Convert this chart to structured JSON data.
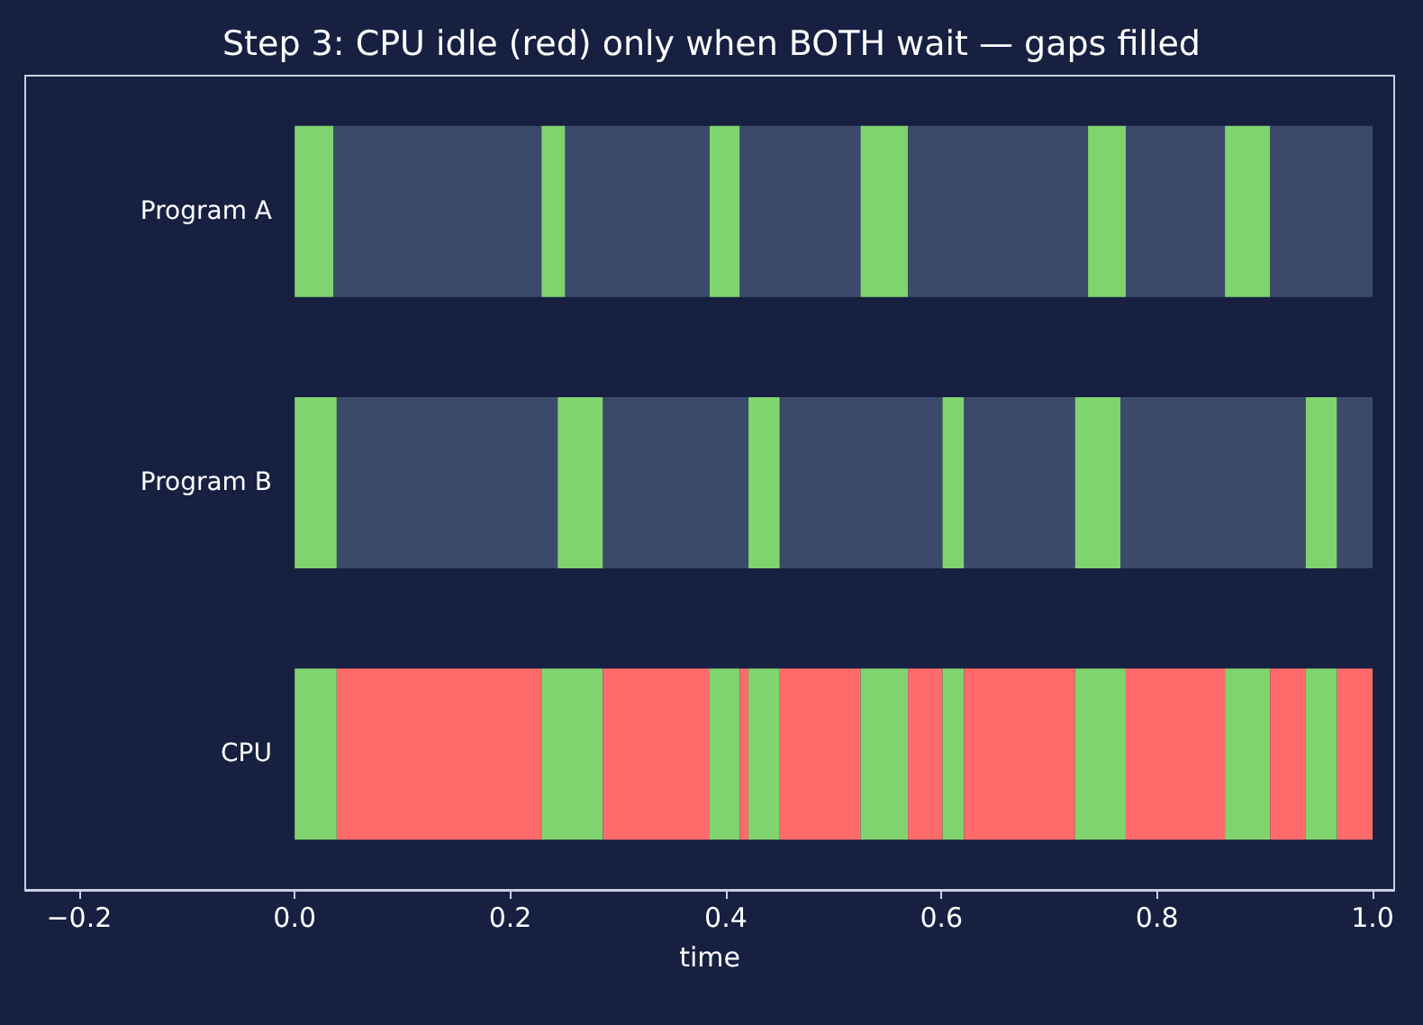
{
  "chart_data": {
    "type": "bar",
    "orientation": "horizontal",
    "stacked": true,
    "title": "Step 3: CPU idle (red) only when BOTH wait — gaps filled",
    "xlabel": "time",
    "categories": [
      "Program A",
      "Program B",
      "CPU"
    ],
    "xlim": [
      -0.25,
      1.02
    ],
    "xticks": [
      {
        "value": -0.2,
        "label": "−0.2"
      },
      {
        "value": 0,
        "label": "0.0"
      },
      {
        "value": 0.2,
        "label": "0.2"
      },
      {
        "value": 0.4,
        "label": "0.4"
      },
      {
        "value": 0.6,
        "label": "0.6"
      },
      {
        "value": 0.8,
        "label": "0.8"
      },
      {
        "value": 1.0,
        "label": "1.0"
      }
    ],
    "grid": false,
    "series": [
      {
        "values": [
          0.036,
          0.039,
          0.039
        ],
        "colors": [
          "#80d46f",
          "#80d46f",
          "#80d46f"
        ]
      },
      {
        "values": [
          0.193,
          0.205,
          0.19
        ],
        "colors": [
          "#3b4a6b",
          "#3b4a6b",
          "#ff6b6b"
        ]
      },
      {
        "values": [
          0.022,
          0.042,
          0.057
        ],
        "colors": [
          "#80d46f",
          "#80d46f",
          "#80d46f"
        ]
      },
      {
        "values": [
          0.134,
          0.135,
          0.099
        ],
        "colors": [
          "#3b4a6b",
          "#3b4a6b",
          "#ff6b6b"
        ]
      },
      {
        "values": [
          0.028,
          0.029,
          0.028
        ],
        "colors": [
          "#80d46f",
          "#80d46f",
          "#80d46f"
        ]
      },
      {
        "values": [
          0.112,
          0.151,
          0.008
        ],
        "colors": [
          "#3b4a6b",
          "#3b4a6b",
          "#ff6b6b"
        ]
      },
      {
        "values": [
          0.044,
          0.02,
          0.029
        ],
        "colors": [
          "#80d46f",
          "#80d46f",
          "#80d46f"
        ]
      },
      {
        "values": [
          0.167,
          0.103,
          0.075
        ],
        "colors": [
          "#3b4a6b",
          "#3b4a6b",
          "#ff6b6b"
        ]
      },
      {
        "values": [
          0.035,
          0.042,
          0.044
        ],
        "colors": [
          "#80d46f",
          "#80d46f",
          "#80d46f"
        ]
      },
      {
        "values": [
          0.092,
          0.172,
          0.032
        ],
        "colors": [
          "#3b4a6b",
          "#3b4a6b",
          "#ff6b6b"
        ]
      },
      {
        "values": [
          0.042,
          0.029,
          0.02
        ],
        "colors": [
          "#80d46f",
          "#80d46f",
          "#80d46f"
        ]
      },
      {
        "values": [
          0.095,
          0.033,
          0.103
        ],
        "colors": [
          "#3b4a6b",
          "#3b4a6b",
          "#ff6b6b"
        ]
      },
      {
        "values": [
          null,
          null,
          0.047
        ],
        "colors": [
          null,
          null,
          "#80d46f"
        ]
      },
      {
        "values": [
          null,
          null,
          0.092
        ],
        "colors": [
          null,
          null,
          "#ff6b6b"
        ]
      },
      {
        "values": [
          null,
          null,
          0.042
        ],
        "colors": [
          null,
          null,
          "#80d46f"
        ]
      },
      {
        "values": [
          null,
          null,
          0.033
        ],
        "colors": [
          null,
          null,
          "#ff6b6b"
        ]
      },
      {
        "values": [
          null,
          null,
          0.029
        ],
        "colors": [
          null,
          null,
          "#80d46f"
        ]
      },
      {
        "values": [
          null,
          null,
          0.033
        ],
        "colors": [
          null,
          null,
          "#ff6b6b"
        ]
      }
    ]
  }
}
